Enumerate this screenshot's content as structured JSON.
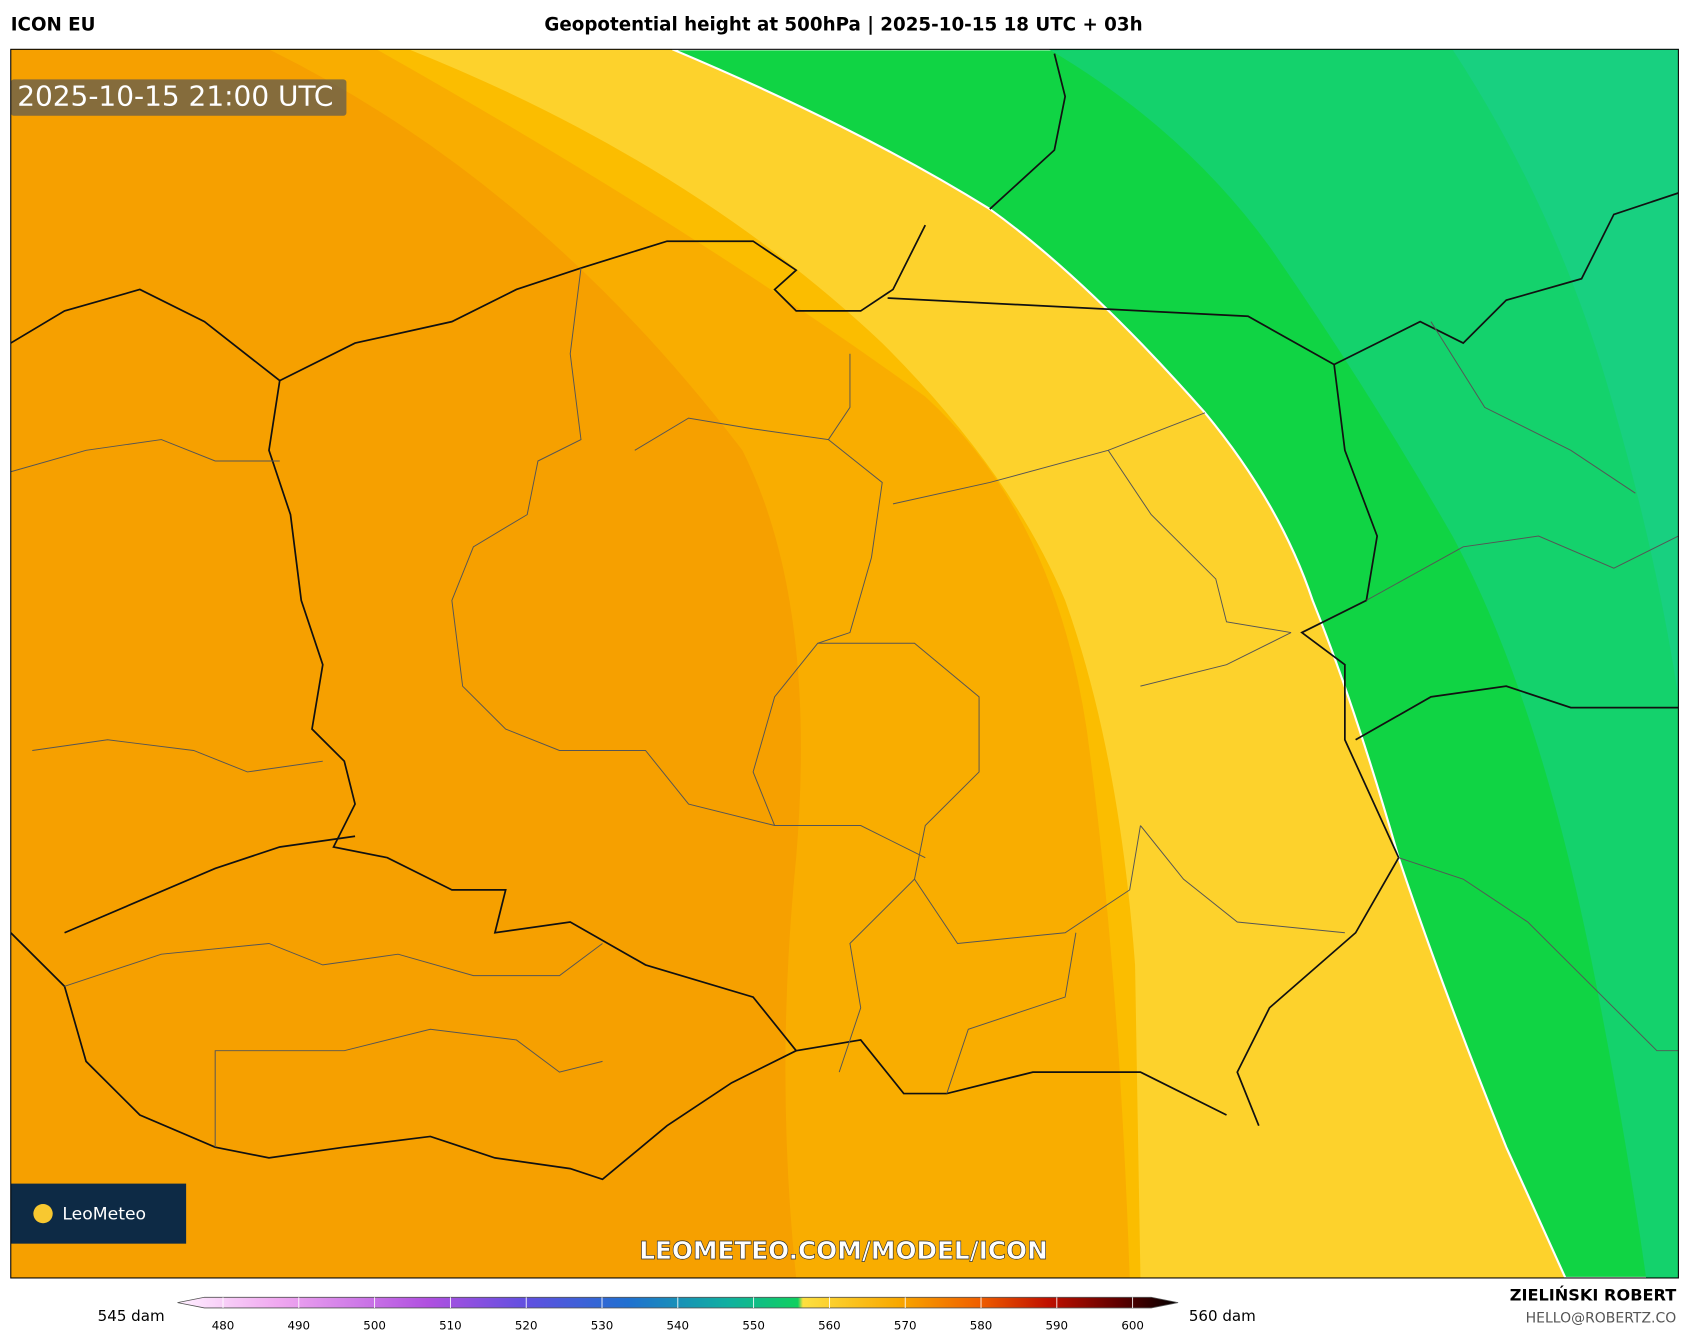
{
  "header": {
    "model": "ICON EU",
    "title": "Geopotential height at 500hPa | 2025-10-15 18 UTC + 03h"
  },
  "map": {
    "timestamp": "2025-10-15 21:00 UTC",
    "watermark": "LEOMETEO.COM/MODEL/ICON",
    "logo": "LeoMeteo"
  },
  "colorbar": {
    "min_label": "545 dam",
    "max_label": "560 dam",
    "lim": [
      474,
      606
    ],
    "ticks": [
      480,
      490,
      500,
      510,
      520,
      530,
      540,
      550,
      560,
      570,
      580,
      590,
      600
    ]
  },
  "footer": {
    "author": "ZIELIŃSKI ROBERT",
    "contact": "HELLO@ROBERTZ.CO"
  }
}
